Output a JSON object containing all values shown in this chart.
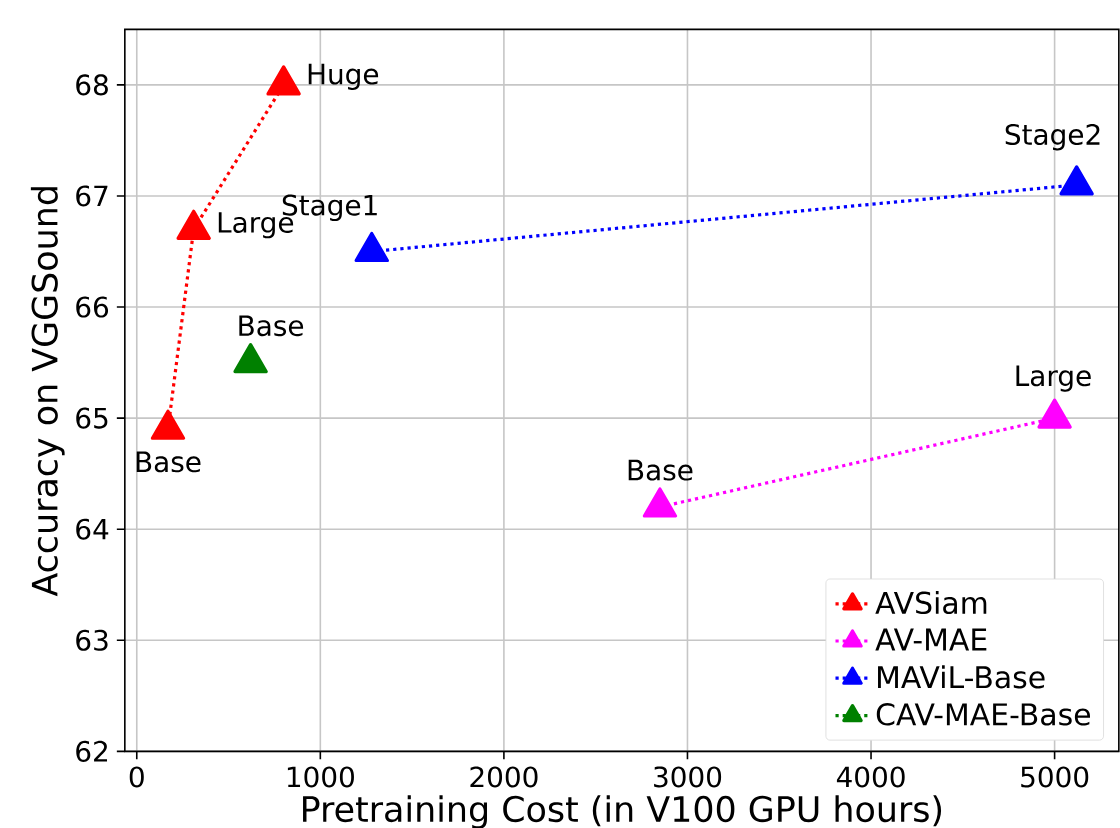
{
  "chart_data": {
    "type": "line",
    "xlabel": "Pretraining Cost (in V100 GPU hours)",
    "ylabel": "Accuracy on VGGSound",
    "xlim": [
      -65,
      5350
    ],
    "ylim": [
      62,
      68.5
    ],
    "xticks": [
      0,
      1000,
      2000,
      3000,
      4000,
      5000
    ],
    "yticks": [
      62,
      63,
      64,
      65,
      66,
      67,
      68
    ],
    "grid": true,
    "legend": "bottom right",
    "marker": "triangle",
    "line_style": "dotted",
    "series": [
      {
        "name": "AVSiam",
        "color": "#ff0000",
        "x": [
          170,
          310,
          800
        ],
        "values": [
          64.9,
          66.7,
          68.0
        ]
      },
      {
        "name": "AV-MAE",
        "color": "#ff00ff",
        "x": [
          2850,
          5000
        ],
        "values": [
          64.2,
          65.0
        ]
      },
      {
        "name": "MAViL-Base",
        "color": "#0000ff",
        "x": [
          1280,
          5120
        ],
        "values": [
          66.5,
          67.1
        ]
      },
      {
        "name": "CAV-MAE-Base",
        "color": "#008000",
        "x": [
          620
        ],
        "values": [
          65.5
        ]
      }
    ],
    "annotations": [
      {
        "text": "Base",
        "x": 170,
        "y": 64.9
      },
      {
        "text": "Large",
        "x": 310,
        "y": 66.7
      },
      {
        "text": "Huge",
        "x": 800,
        "y": 68.0
      },
      {
        "text": "Base",
        "x": 2850,
        "y": 64.2
      },
      {
        "text": "Large",
        "x": 5000,
        "y": 65.0
      },
      {
        "text": "Stage1",
        "x": 1280,
        "y": 66.5
      },
      {
        "text": "Stage2",
        "x": 5120,
        "y": 67.1
      },
      {
        "text": "Base",
        "x": 620,
        "y": 65.5
      }
    ]
  }
}
